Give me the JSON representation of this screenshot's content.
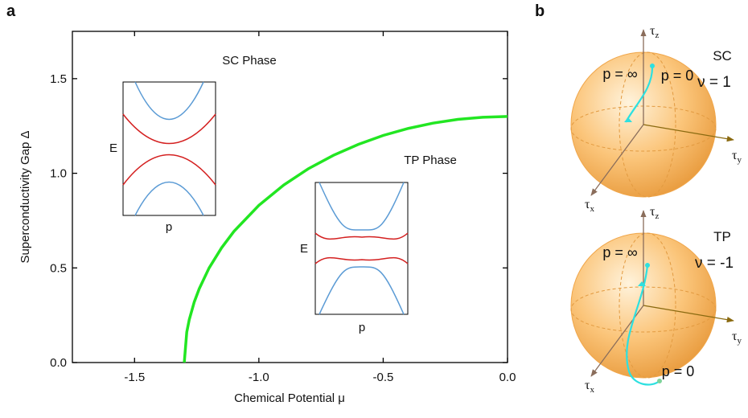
{
  "chart_data": {
    "type": "line",
    "panel_label": "a",
    "xlabel": "Chemical Potential μ",
    "ylabel": "Superconductivity Gap Δ",
    "x": [
      -1.3,
      -1.29,
      -1.28,
      -1.26,
      -1.24,
      -1.2,
      -1.15,
      -1.1,
      -1.0,
      -0.9,
      -0.8,
      -0.7,
      -0.6,
      -0.5,
      -0.4,
      -0.3,
      -0.2,
      -0.1,
      0
    ],
    "series": [
      {
        "color": "#22e622",
        "values": [
          0,
          0.161,
          0.227,
          0.32,
          0.39,
          0.5,
          0.606,
          0.693,
          0.831,
          0.938,
          1.025,
          1.095,
          1.153,
          1.2,
          1.237,
          1.265,
          1.285,
          1.296,
          1.3
        ]
      }
    ],
    "xlim": [
      -1.75,
      0
    ],
    "ylim": [
      0,
      1.75
    ],
    "xticks": [
      -1.5,
      {
        "value": -1,
        "label": "-1.0"
      },
      -0.5,
      {
        "value": 0,
        "label": "0.0"
      }
    ],
    "yticks": [
      {
        "value": 0,
        "label": "0.0"
      },
      0.5,
      {
        "value": 1,
        "label": "1.0"
      },
      1.5
    ],
    "annotations": [
      "SC Phase",
      "TP Phase"
    ]
  },
  "insets": [
    {
      "ylabel": "E",
      "xlabel": "p"
    },
    {
      "ylabel": "E",
      "xlabel": "p"
    }
  ],
  "panel_b": {
    "label": "b",
    "spheres": [
      {
        "phase": "SC",
        "invariant": "ν = 1",
        "p_inf": "p = ∞",
        "p_zero": "p = 0",
        "axes": [
          {
            "symbol": "τ",
            "sub": "z"
          },
          {
            "symbol": "τ",
            "sub": "y"
          },
          {
            "symbol": "τ",
            "sub": "x"
          }
        ]
      },
      {
        "phase": "TP",
        "invariant": "ν = -1",
        "p_inf": "p = ∞",
        "p_zero": "p = 0",
        "axes": [
          {
            "symbol": "τ",
            "sub": "z"
          },
          {
            "symbol": "τ",
            "sub": "y"
          },
          {
            "symbol": "τ",
            "sub": "x"
          }
        ]
      }
    ]
  }
}
